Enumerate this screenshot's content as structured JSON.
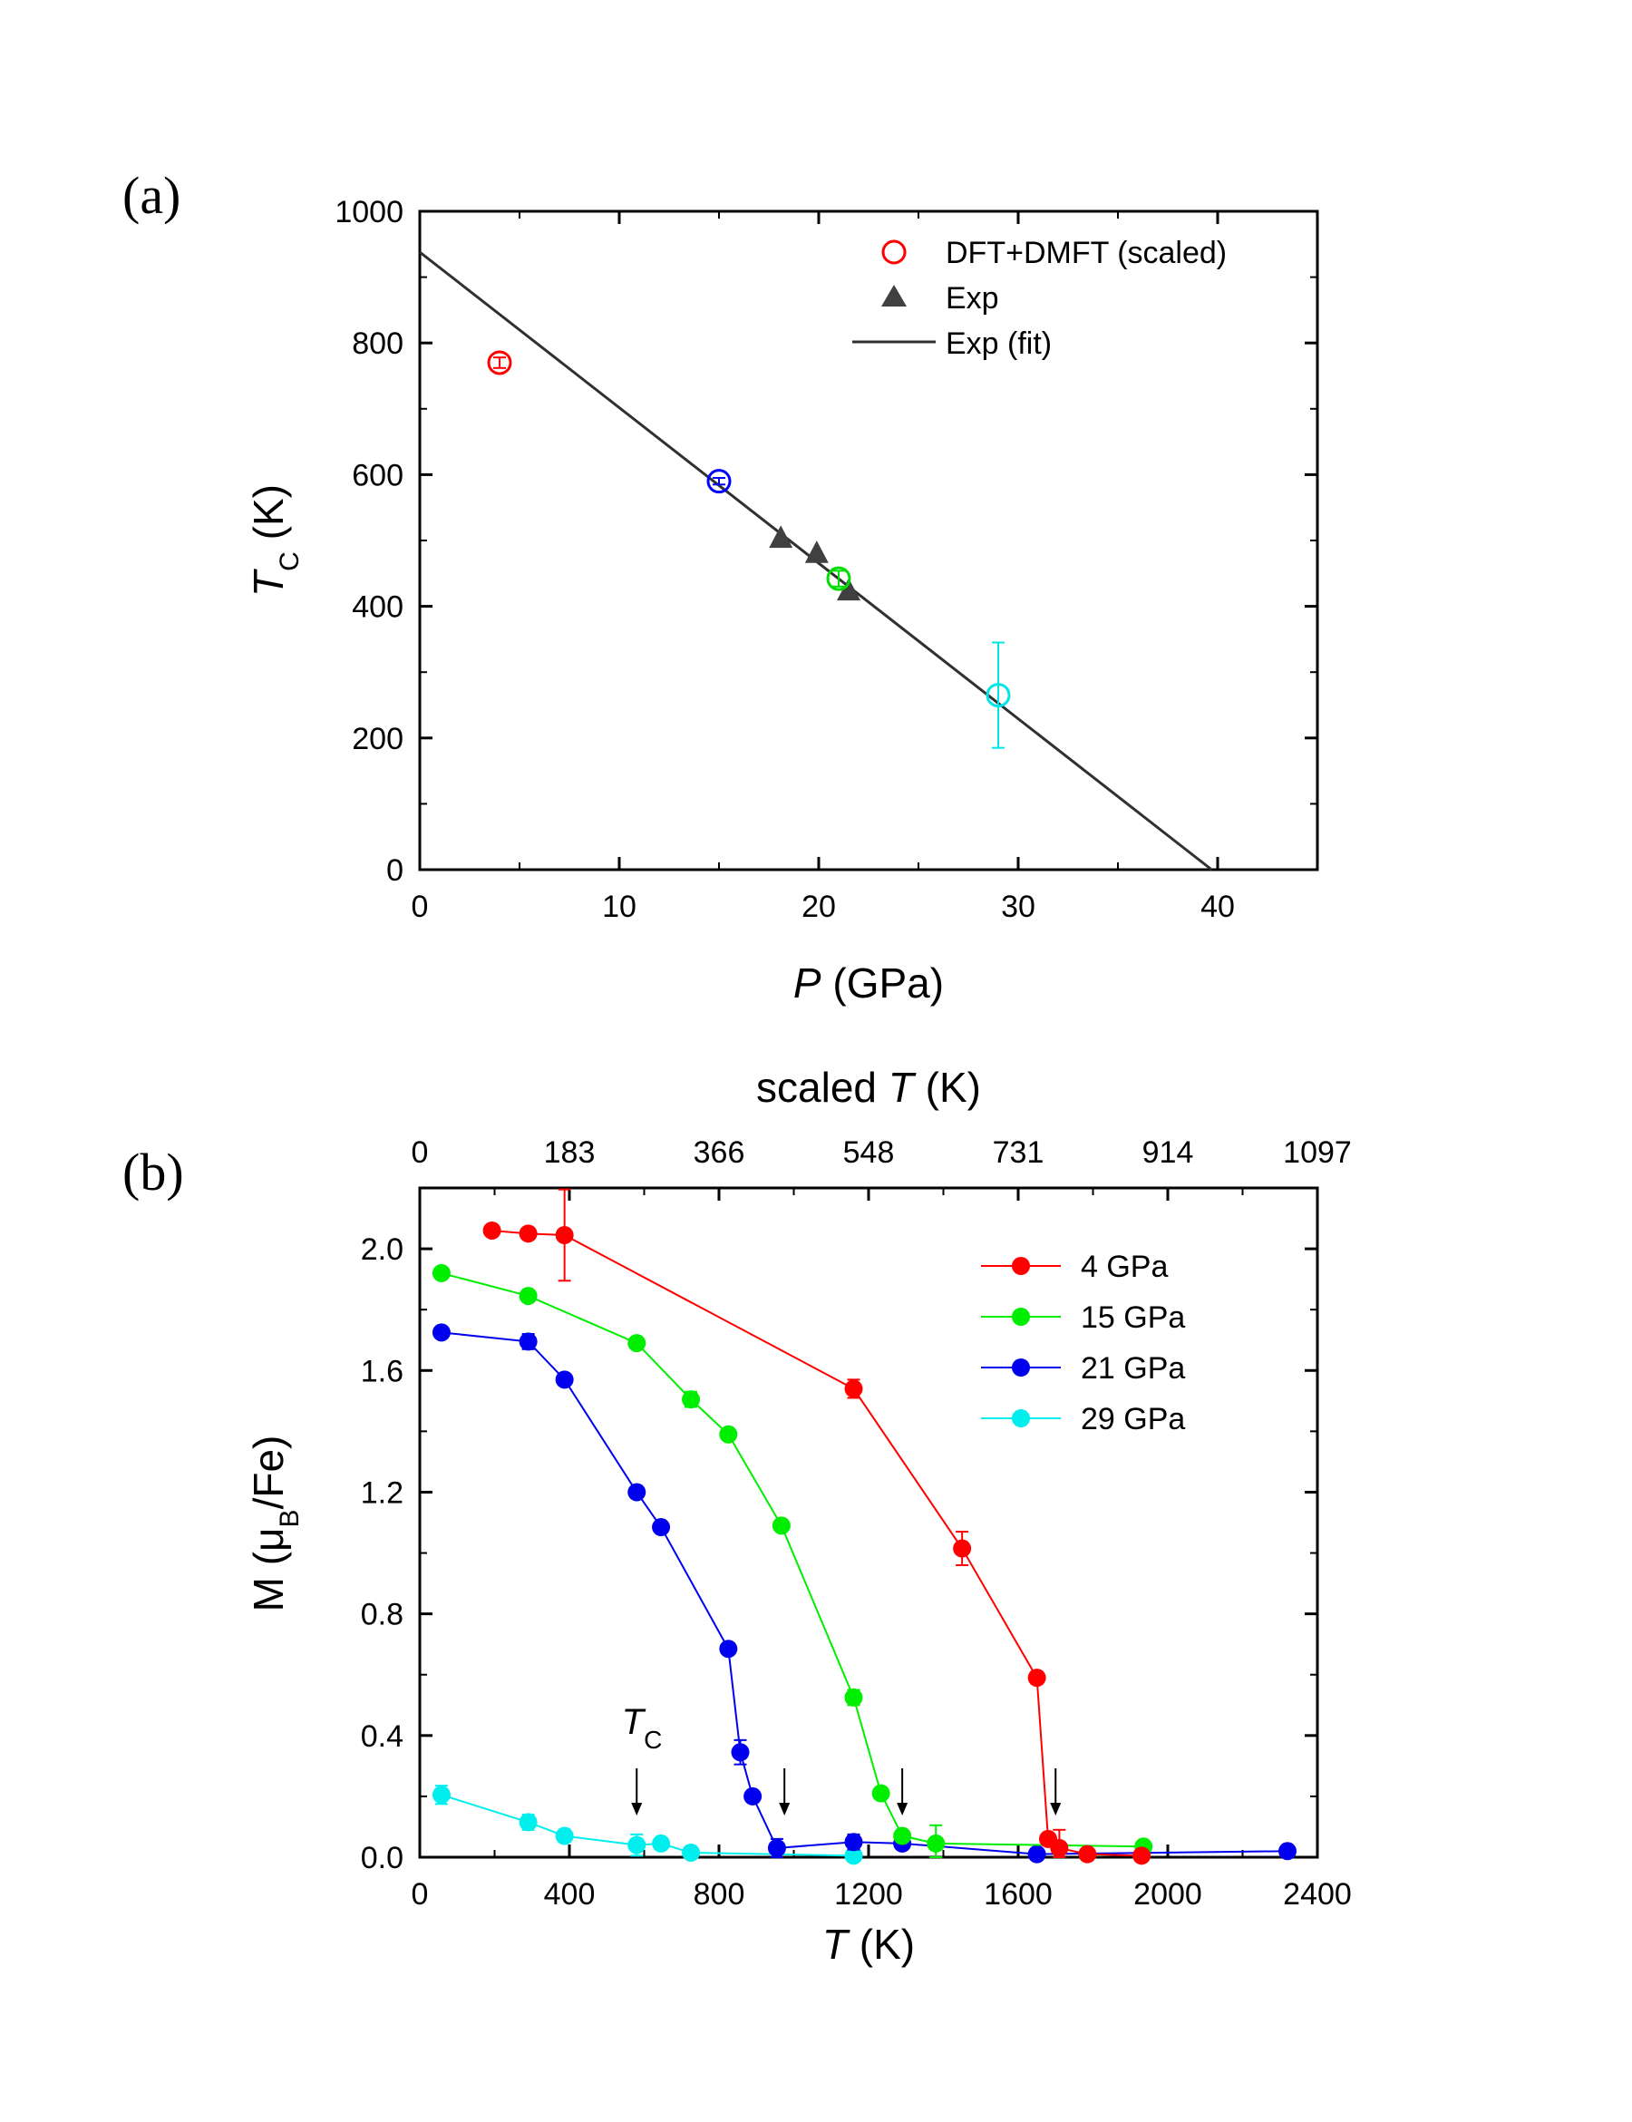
{
  "colors": {
    "dft_4": "#ff0000",
    "dft_15": "#0000ff",
    "dft_21": "#00dd00",
    "dft_29": "#00e5e5",
    "exp": "#404040",
    "fit": "#303030",
    "s4": "#ff0000",
    "s15": "#00ee00",
    "s21": "#0000ee",
    "s29": "#00eeee"
  },
  "chart_data": [
    {
      "type": "scatter",
      "panel_label": "(a)",
      "xlabel_italic": "P",
      "xlabel_rest": " (GPa)",
      "ylabel_italic": "T",
      "ylabel_sub": "C",
      "ylabel_rest": " (K)",
      "xlim": [
        0,
        45
      ],
      "ylim": [
        0,
        1000
      ],
      "xticks": [
        0,
        10,
        20,
        30,
        40
      ],
      "xtick_labels": [
        "0",
        "10",
        "20",
        "30",
        "40"
      ],
      "yticks": [
        0,
        200,
        400,
        600,
        800,
        1000
      ],
      "ytick_labels": [
        "0",
        "200",
        "400",
        "600",
        "800",
        "1000"
      ],
      "legend": [
        "DFT+DMFT (scaled)",
        "Exp",
        "Exp (fit)"
      ],
      "legend_position": "top-right",
      "dft_points": [
        {
          "x": 4,
          "y": 770,
          "err": 8,
          "color_key": "dft_4"
        },
        {
          "x": 15,
          "y": 590,
          "err": 5,
          "color_key": "dft_15"
        },
        {
          "x": 21,
          "y": 442,
          "err": 12,
          "color_key": "dft_21"
        },
        {
          "x": 29,
          "y": 265,
          "err": 80,
          "color_key": "dft_29"
        }
      ],
      "exp_points": [
        {
          "x": 18.1,
          "y": 505
        },
        {
          "x": 19.9,
          "y": 482
        },
        {
          "x": 21.5,
          "y": 425
        }
      ],
      "fit_line": {
        "x": [
          0,
          39.7
        ],
        "y": [
          938,
          0
        ]
      }
    },
    {
      "type": "line",
      "panel_label": "(b)",
      "xlabel_italic": "T",
      "xlabel_rest": " (K)",
      "top_xlabel_prefix": "scaled ",
      "top_xlabel_italic": "T",
      "top_xlabel_rest": " (K)",
      "ylabel_prefix": "M (μ",
      "ylabel_sub": "B",
      "ylabel_rest": "/Fe)",
      "xlim": [
        0,
        2400
      ],
      "ylim": [
        0,
        2.2
      ],
      "xticks": [
        0,
        400,
        800,
        1200,
        1600,
        2000,
        2400
      ],
      "xtick_labels": [
        "0",
        "400",
        "800",
        "1200",
        "1600",
        "2000",
        "2400"
      ],
      "top_xtick_labels": [
        "0",
        "183",
        "366",
        "548",
        "731",
        "914",
        "1097"
      ],
      "yticks": [
        0,
        0.4,
        0.8,
        1.2,
        1.6,
        2.0
      ],
      "ytick_labels": [
        "0.0",
        "0.4",
        "0.8",
        "1.2",
        "1.6",
        "2.0"
      ],
      "legend_position": "top-right",
      "annotation_italic": "T",
      "annotation_sub": "C",
      "tc_arrows_T": [
        580,
        975,
        1290,
        1700
      ],
      "series": [
        {
          "name": "4 GPa",
          "color_key": "s4",
          "x": [
            193,
            290,
            387,
            1160,
            1450,
            1650,
            1680,
            1710,
            1785,
            1930
          ],
          "y": [
            2.06,
            2.05,
            2.045,
            1.54,
            1.015,
            0.59,
            0.06,
            0.03,
            0.01,
            0.005
          ],
          "err": [
            0,
            0,
            0.15,
            0.03,
            0.055,
            0.02,
            0.01,
            0.06,
            0.01,
            0.01
          ]
        },
        {
          "name": "15 GPa",
          "color_key": "s15",
          "x": [
            58,
            290,
            580,
            725,
            825,
            967,
            1160,
            1233,
            1290,
            1380,
            1935
          ],
          "y": [
            1.92,
            1.845,
            1.69,
            1.505,
            1.39,
            1.09,
            0.525,
            0.21,
            0.07,
            0.045,
            0.035
          ],
          "err": [
            0,
            0,
            0,
            0.025,
            0,
            0,
            0.025,
            0,
            0,
            0.06,
            0.01
          ]
        },
        {
          "name": "21 GPa",
          "color_key": "s21",
          "x": [
            58,
            290,
            387,
            580,
            645,
            825,
            857,
            890,
            955,
            1160,
            1290,
            1650,
            2320
          ],
          "y": [
            1.725,
            1.695,
            1.57,
            1.2,
            1.085,
            0.685,
            0.345,
            0.2,
            0.03,
            0.05,
            0.045,
            0.01,
            0.02
          ],
          "err": [
            0,
            0.025,
            0,
            0,
            0,
            0,
            0.04,
            0,
            0.03,
            0.025,
            0.01,
            0.005,
            0.005
          ]
        },
        {
          "name": "29 GPa",
          "color_key": "s29",
          "x": [
            58,
            290,
            387,
            580,
            645,
            725,
            1160
          ],
          "y": [
            0.205,
            0.115,
            0.07,
            0.04,
            0.045,
            0.015,
            0.005
          ],
          "err": [
            0.03,
            0.025,
            0.02,
            0.035,
            0.01,
            0.005,
            0.005
          ]
        }
      ]
    }
  ]
}
